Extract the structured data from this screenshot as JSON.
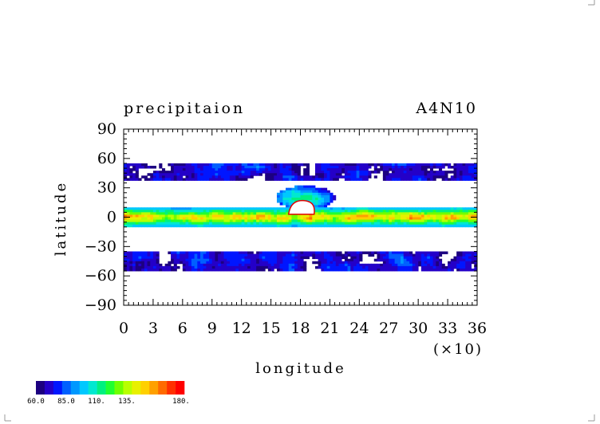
{
  "chart_data": {
    "type": "heatmap",
    "title": "precipitaion",
    "subtitle": "A4N10",
    "xlabel": "longitude",
    "ylabel": "latitude",
    "x_multiplier": "(×10)",
    "xlim": [
      0,
      36
    ],
    "ylim": [
      -90,
      90
    ],
    "x_ticks": [
      "0",
      "3",
      "6",
      "9",
      "12",
      "15",
      "18",
      "21",
      "24",
      "27",
      "30",
      "33",
      "36"
    ],
    "y_ticks": [
      "90",
      "60",
      "30",
      "0",
      "−30",
      "−60",
      "−90"
    ],
    "colorbar": {
      "min": 60,
      "max": 180,
      "tick_labels": [
        "60.0",
        "85.0",
        "110.",
        "135.",
        "180."
      ],
      "colors": [
        "#1c0080",
        "#2400c8",
        "#0016ff",
        "#0060ff",
        "#0098ff",
        "#00c8ff",
        "#00e8d0",
        "#00f080",
        "#20ff30",
        "#70ff00",
        "#b8ff00",
        "#e8f000",
        "#ffd000",
        "#ffa000",
        "#ff6a00",
        "#ff3000",
        "#ff0000"
      ]
    },
    "levels_note": "",
    "bands": [
      {
        "name": "",
        "lat_center": 45,
        "lat_halfwidth": 10,
        "intensity": 0.15
      },
      {
        "name": "",
        "lat_center": 0,
        "lat_halfwidth": 10,
        "intensity": 0.75
      },
      {
        "name": "",
        "lat_center": -45,
        "lat_halfwidth": 12,
        "intensity": 0.15
      }
    ]
  }
}
